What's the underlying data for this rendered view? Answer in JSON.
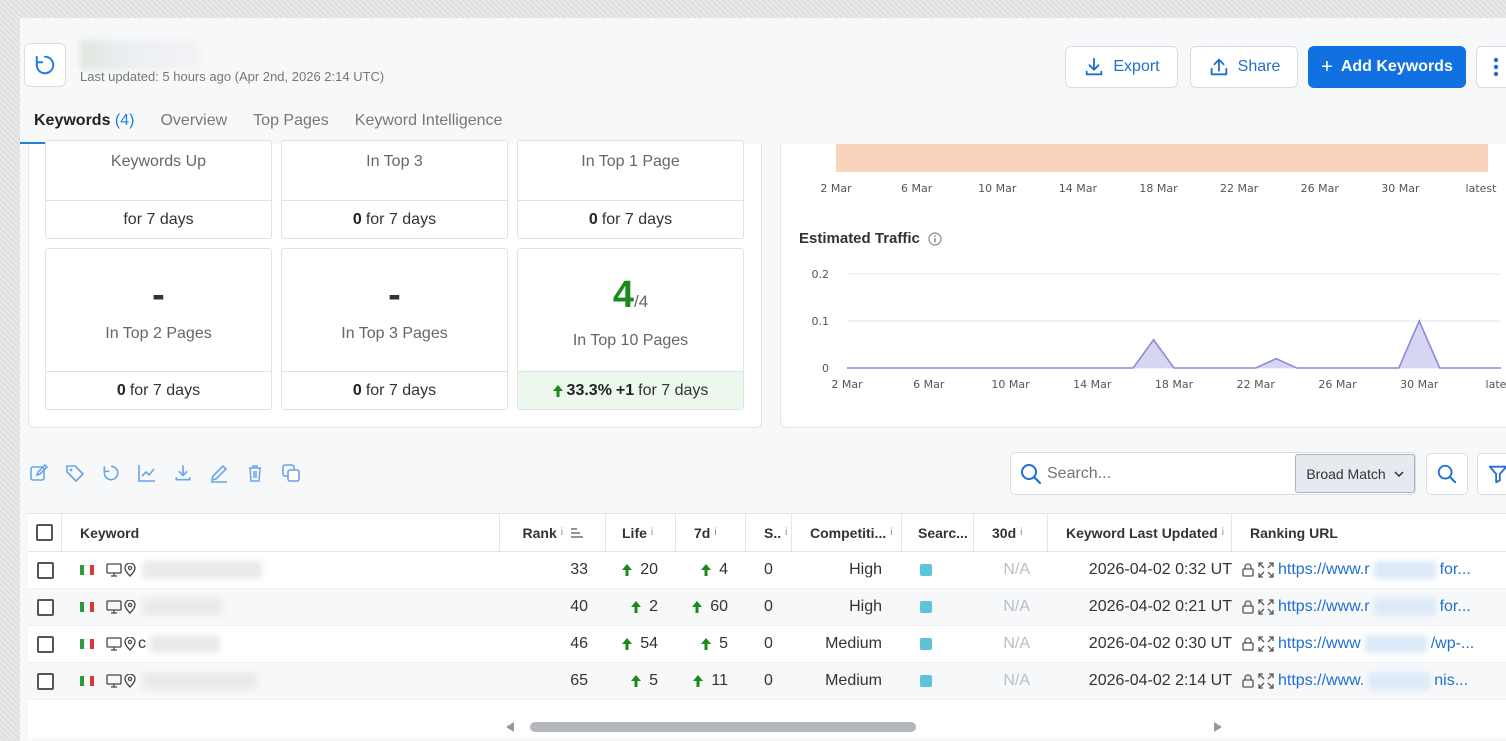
{
  "header": {
    "last_updated": "Last updated: 5 hours ago (Apr 2nd, 2026 2:14 UTC)",
    "export_label": "Export",
    "share_label": "Share",
    "add_keywords_label": "Add Keywords"
  },
  "tabs": [
    {
      "label": "Keywords",
      "count": "(4)"
    },
    {
      "label": "Overview"
    },
    {
      "label": "Top Pages"
    },
    {
      "label": "Keyword Intelligence"
    }
  ],
  "stats": {
    "keywords_up": {
      "label": "Keywords Up",
      "footer": "for 7 days"
    },
    "in_top_3": {
      "label": "In Top 3",
      "footer_value": "0",
      "footer": "for 7 days"
    },
    "in_top_1_page": {
      "label": "In Top 1 Page",
      "footer_value": "0",
      "footer": "for 7 days"
    },
    "in_top_2_pages": {
      "value": "-",
      "label": "In Top 2 Pages",
      "footer_value": "0",
      "footer": "for 7 days"
    },
    "in_top_3_pages": {
      "value": "-",
      "label": "In Top 3 Pages",
      "footer_value": "0",
      "footer": "for 7 days"
    },
    "in_top_10_pages": {
      "value": "4",
      "total": "/4",
      "label": "In Top 10 Pages",
      "footer_pct": "33.3%",
      "footer_delta": "+1",
      "footer": "for 7 days"
    }
  },
  "colors": {
    "accent": "#1171e0",
    "green": "#1a8a1a",
    "bar_fill": "#f9d4bd",
    "traffic_line": "#8e8ad6"
  },
  "chart_data": [
    {
      "type": "area",
      "title": "",
      "x_ticks": [
        "2 Mar",
        "6 Mar",
        "10 Mar",
        "14 Mar",
        "18 Mar",
        "22 Mar",
        "26 Mar",
        "30 Mar",
        "latest"
      ]
    },
    {
      "type": "area",
      "title": "Estimated Traffic",
      "x_ticks": [
        "2 Mar",
        "6 Mar",
        "10 Mar",
        "14 Mar",
        "18 Mar",
        "22 Mar",
        "26 Mar",
        "30 Mar",
        "latest"
      ],
      "y_ticks": [
        "0.2",
        "0.1",
        "0"
      ],
      "ylim": [
        0,
        0.2
      ],
      "x": [
        "2 Mar",
        "3 Mar",
        "4 Mar",
        "5 Mar",
        "6 Mar",
        "7 Mar",
        "8 Mar",
        "9 Mar",
        "10 Mar",
        "11 Mar",
        "12 Mar",
        "13 Mar",
        "14 Mar",
        "15 Mar",
        "16 Mar",
        "17 Mar",
        "18 Mar",
        "19 Mar",
        "20 Mar",
        "21 Mar",
        "22 Mar",
        "23 Mar",
        "24 Mar",
        "25 Mar",
        "26 Mar",
        "27 Mar",
        "28 Mar",
        "29 Mar",
        "30 Mar",
        "31 Mar",
        "1 Apr",
        "2 Apr",
        "latest"
      ],
      "values": [
        0,
        0,
        0,
        0,
        0,
        0,
        0,
        0,
        0,
        0,
        0,
        0,
        0,
        0,
        0,
        0.06,
        0,
        0,
        0,
        0,
        0,
        0.02,
        0,
        0,
        0,
        0,
        0,
        0,
        0.1,
        0,
        0,
        0,
        0
      ]
    }
  ],
  "search": {
    "placeholder": "Search...",
    "match": "Broad Match"
  },
  "table": {
    "headers": {
      "keyword": "Keyword",
      "rank": "Rank",
      "life": "Life",
      "d7": "7d",
      "s": "S..",
      "competition": "Competiti...",
      "search": "Searc...",
      "d30": "30d",
      "updated": "Keyword Last Updated",
      "url": "Ranking URL"
    },
    "rows": [
      {
        "kw_prefix": "",
        "rank": "33",
        "life": "20",
        "d7": "4",
        "s": "0",
        "competition": "High",
        "d30": "N/A",
        "updated": "2026-04-02 0:32 UT",
        "url_a": "https://www.r",
        "url_b": "for..."
      },
      {
        "kw_prefix": "",
        "rank": "40",
        "life": "2",
        "d7": "60",
        "s": "0",
        "competition": "High",
        "d30": "N/A",
        "updated": "2026-04-02 0:21 UT",
        "url_a": "https://www.r",
        "url_b": "for..."
      },
      {
        "kw_prefix": "c",
        "rank": "46",
        "life": "54",
        "d7": "5",
        "s": "0",
        "competition": "Medium",
        "d30": "N/A",
        "updated": "2026-04-02 0:30 UT",
        "url_a": "https://www",
        "url_b": "/wp-..."
      },
      {
        "kw_prefix": "",
        "rank": "65",
        "life": "5",
        "d7": "11",
        "s": "0",
        "competition": "Medium",
        "d30": "N/A",
        "updated": "2026-04-02 2:14 UT",
        "url_a": "https://www.",
        "url_b": "nis..."
      }
    ]
  }
}
